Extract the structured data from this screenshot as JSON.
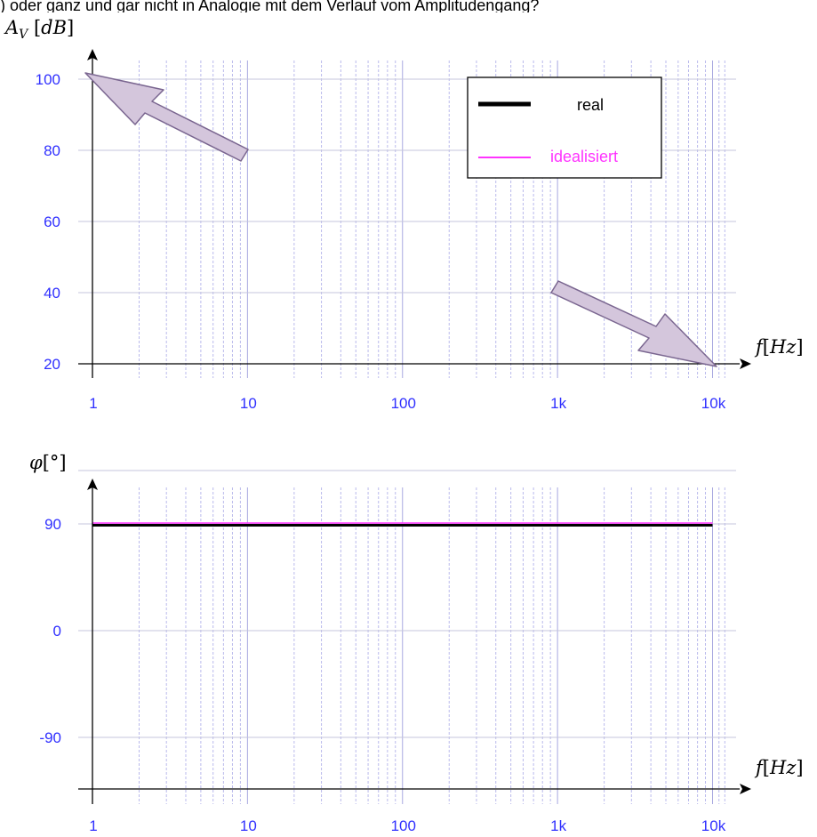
{
  "header_fragment": ") oder ganz und gar nicht in Analogie mit dem Verlauf vom Amplitudengang?",
  "colors": {
    "tick_label": "#3030ff",
    "grid_major": "#c6c6dc",
    "grid_minor": "#babaec",
    "real": "#000000",
    "ideal": "#ff33ff",
    "arrow_fill": "#d4c6dc",
    "arrow_stroke": "#7a6690"
  },
  "chart_data": [
    {
      "type": "line",
      "id": "amplitude",
      "xscale": "log",
      "xlim": [
        1,
        10000
      ],
      "ylim": [
        20,
        100
      ],
      "ylabel": "A_V [dB]",
      "xlabel": "f [Hz]",
      "yticks": [
        20,
        40,
        60,
        80,
        100
      ],
      "xticks": [
        {
          "value": 1,
          "label": "1"
        },
        {
          "value": 10,
          "label": "10"
        },
        {
          "value": 100,
          "label": "100"
        },
        {
          "value": 1000,
          "label": "1k"
        },
        {
          "value": 10000,
          "label": "10k"
        }
      ],
      "grid": true,
      "legend": {
        "position": "top-right",
        "entries": [
          {
            "name": "real",
            "color": "#000000"
          },
          {
            "name": "idealisiert",
            "color": "#ff33ff"
          }
        ]
      },
      "annotations": [
        {
          "type": "arrow",
          "from": {
            "x": 10,
            "y": 80
          },
          "to": {
            "x": 1,
            "y": 100
          }
        },
        {
          "type": "arrow",
          "from": {
            "x": 1000,
            "y": 40
          },
          "to": {
            "x": 10000,
            "y": 20
          }
        }
      ],
      "series": []
    },
    {
      "type": "line",
      "id": "phase",
      "xscale": "log",
      "xlim": [
        1,
        10000
      ],
      "ylim": [
        -135,
        135
      ],
      "ylabel": "φ [°]",
      "xlabel": "f [Hz]",
      "yticks": [
        -90,
        0,
        90
      ],
      "xticks": [
        {
          "value": 1,
          "label": "1"
        },
        {
          "value": 10,
          "label": "10"
        },
        {
          "value": 100,
          "label": "100"
        },
        {
          "value": 1000,
          "label": "1k"
        },
        {
          "value": 10000,
          "label": "10k"
        }
      ],
      "grid": true,
      "series": [
        {
          "name": "real",
          "x": [
            1,
            10000
          ],
          "y": [
            90,
            90
          ]
        },
        {
          "name": "idealisiert",
          "x": [
            1,
            10000
          ],
          "y": [
            90,
            90
          ]
        }
      ]
    }
  ]
}
